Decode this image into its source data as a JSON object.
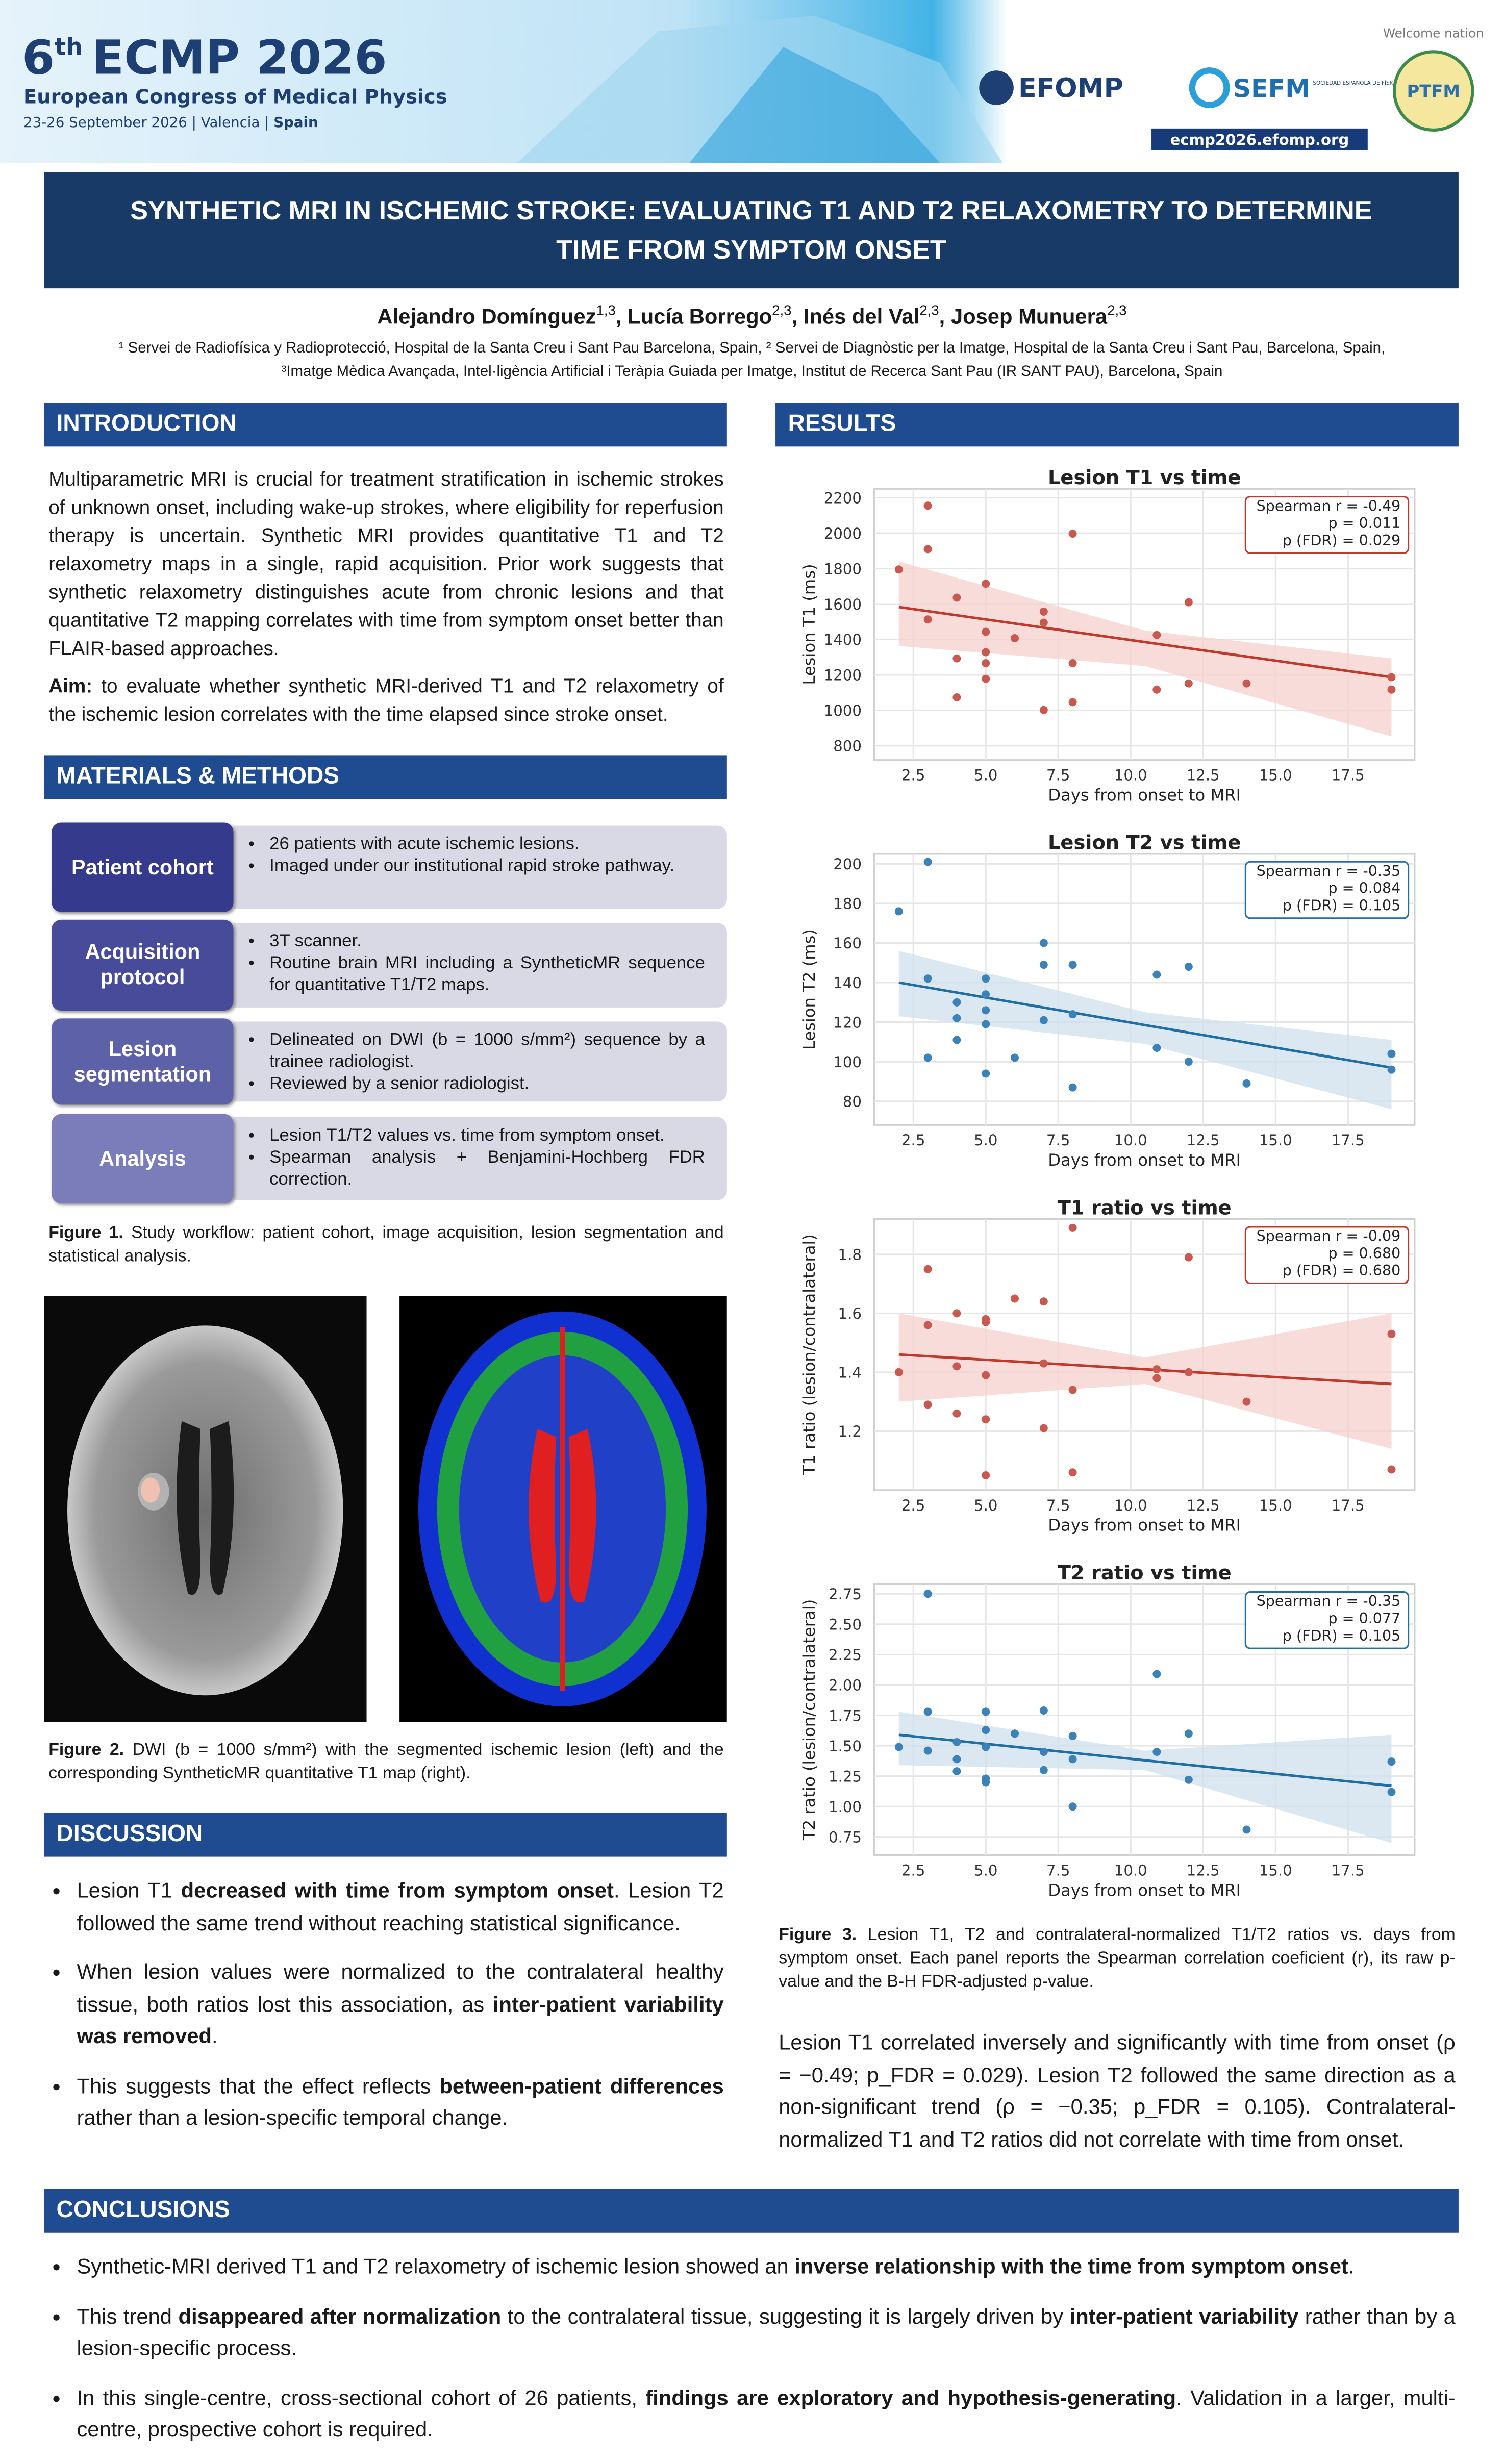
{
  "banner": {
    "edition_number": "6",
    "edition_suffix": "th",
    "name": "ECMP 2026",
    "subtitle": "European Congress of Medical Physics",
    "dates": "23-26 September 2026 | Valencia | ",
    "country": "Spain",
    "logo_efomp": "EFOMP",
    "logo_sefm": "SEFM",
    "sefm_full": "SOCIEDAD ESPAÑOLA DE FÍSICA MÉDICA",
    "welcome": "Welcome nation",
    "logo_ptfm": "PTFM",
    "url": "ecmp2026.efomp.org"
  },
  "header": {
    "title": "SYNTHETIC MRI IN ISCHEMIC STROKE: EVALUATING T1 AND T2 RELAXOMETRY TO DETERMINE TIME FROM SYMPTOM ONSET",
    "separator": ",",
    "authors": [
      {
        "name": "Alejandro Domínguez",
        "aff": "1,3"
      },
      {
        "name": "Lucía Borrego",
        "aff": "2,3"
      },
      {
        "name": "Inés del Val",
        "aff": "2,3"
      },
      {
        "name": "Josep Munuera",
        "aff": "2,3"
      }
    ],
    "affiliations": [
      "¹ Servei de Radiofísica y Radioprotecció, Hospital de la Santa Creu i Sant Pau Barcelona, Spain,  ² Servei de Diagnòstic per la Imatge, Hospital de la Santa Creu i Sant Pau, Barcelona, Spain,",
      "³Imatge Mèdica Avançada, Intel·ligència Artificial i Teràpia Guiada per Imatge, Institut de Recerca Sant Pau (IR SANT PAU), Barcelona, Spain"
    ]
  },
  "introduction": {
    "heading": "INTRODUCTION",
    "text": "Multiparametric MRI is crucial for treatment stratification in ischemic strokes of unknown onset, including wake-up strokes, where eligibility for reperfusion therapy is uncertain. Synthetic MRI provides quantitative T1 and T2 relaxometry maps in a single, rapid acquisition. Prior work suggests that synthetic relaxometry distinguishes acute from chronic lesions and that quantitative T2 mapping correlates with time from symptom onset better than FLAIR-based approaches.",
    "aim": [
      {
        "b": "Aim:"
      },
      " to evaluate whether synthetic MRI-derived T1 and T2 relaxometry of the ischemic lesion correlates with the time elapsed since stroke onset."
    ]
  },
  "methods": {
    "heading": "MATERIALS & METHODS",
    "rows": [
      {
        "label": "Patient cohort",
        "bullets": [
          "26 patients with acute ischemic lesions.",
          "Imaged under our institutional rapid stroke pathway."
        ]
      },
      {
        "label": "Acquisition protocol",
        "bullets": [
          "3T scanner.",
          "Routine brain MRI including a SyntheticMR sequence for quantitative T1/T2 maps."
        ]
      },
      {
        "label": "Lesion segmentation",
        "bullets": [
          "Delineated on DWI (b = 1000 s/mm²) sequence by a trainee radiologist.",
          "Reviewed by a senior radiologist."
        ]
      },
      {
        "label": "Analysis",
        "bullets": [
          "Lesion T1/T2  values vs. time from symptom onset.",
          "Spearman analysis + Benjamini-Hochberg FDR correction."
        ]
      }
    ],
    "figure1": [
      {
        "b": "Figure 1."
      },
      " Study workflow: patient cohort, image acquisition, lesion segmentation and statistical analysis."
    ],
    "figure2": [
      {
        "b": "Figure 2."
      },
      " DWI (b = 1000 s/mm²) with the segmented ischemic lesion (left) and the corresponding SyntheticMR quantitative T1 map (right)."
    ]
  },
  "discussion": {
    "heading": "DISCUSSION",
    "bullets": [
      [
        "Lesion T1 ",
        {
          "b": "decreased with time from symptom onset"
        },
        ". Lesion T2 followed the same trend without reaching statistical significance."
      ],
      [
        "When lesion values were normalized to the contralateral healthy tissue, both ratios lost this association, as ",
        {
          "b": "inter-patient variability was removed"
        },
        "."
      ],
      [
        "This suggests that the effect reflects ",
        {
          "b": "between-patient differences"
        },
        " rather than a lesion-specific temporal change."
      ]
    ]
  },
  "results": {
    "heading": "RESULTS",
    "figure3": [
      {
        "b": "Figure 3."
      },
      " Lesion T1, T2 and contralateral-normalized T1/T2 ratios vs. days from symptom onset. Each panel reports the Spearman correlation coeficient (r), its raw p-value and the B-H FDR-adjusted p-value."
    ],
    "text": "Lesion T1 correlated inversely and significantly with time from onset (ρ = −0.49; p_FDR = 0.029). Lesion T2 followed the same direction as a non-significant trend (ρ = −0.35; p_FDR = 0.105). Contralateral-normalized T1 and T2 ratios did not correlate with time from onset."
  },
  "conclusions": {
    "heading": "CONCLUSIONS",
    "bullets": [
      [
        "Synthetic-MRI derived T1 and T2 relaxometry of ischemic lesion showed an ",
        {
          "b": "inverse relationship with the time from symptom onset"
        },
        "."
      ],
      [
        "This trend ",
        {
          "b": "disappeared after normalization"
        },
        " to the contralateral tissue, suggesting it is largely driven by ",
        {
          "b": "inter-patient variability"
        },
        " rather than by a lesion-specific process."
      ],
      [
        "In this single-centre, cross-sectional cohort of 26 patients, ",
        {
          "b": "findings are exploratory and hypothesis-generating"
        },
        ". Validation in a larger, multi-centre, prospective cohort is required."
      ]
    ]
  },
  "chart_data": [
    {
      "type": "scatter",
      "title": "Lesion T1 vs time",
      "xlabel": "Days from onset to MRI",
      "ylabel": "Lesion T1 (ms)",
      "grid": true,
      "color": "#c9594e",
      "x": [
        2,
        3,
        3,
        3,
        4,
        4,
        4,
        5,
        5,
        5,
        5,
        5,
        6,
        7,
        7,
        7,
        8,
        8,
        8,
        10.9,
        10.9,
        12,
        12,
        14,
        19,
        19
      ],
      "values": [
        1795,
        2155,
        1910,
        1513,
        1636,
        1293,
        1073,
        1715,
        1443,
        1328,
        1266,
        1178,
        1407,
        1557,
        1495,
        1002,
        1997,
        1266,
        1046,
        1425,
        1117,
        1610,
        1152,
        1152,
        1187,
        1117
      ],
      "xlim": [
        1.15,
        19.8
      ],
      "ylim": [
        720,
        2250
      ],
      "xticks": [
        2.5,
        {
          "value": 5,
          "label": "5.0"
        },
        7.5,
        {
          "value": 10,
          "label": "10.0"
        },
        12.5,
        {
          "value": 15,
          "label": "15.0"
        },
        17.5
      ],
      "yticks": [
        800,
        1000,
        1200,
        1400,
        1600,
        1800,
        2000,
        2200
      ],
      "trend": {
        "x": [
          2,
          19
        ],
        "values": [
          1583,
          1187
        ],
        "color": "#c0392b"
      },
      "band": {
        "x": [
          2,
          10.5,
          19
        ],
        "lower": [
          1363,
          1250,
          853
        ],
        "upper": [
          1840,
          1450,
          1293
        ],
        "color": "#f5d0cd"
      },
      "annotation": [
        "Spearman r = -0.49",
        "p = 0.011",
        "p (FDR) = 0.029"
      ]
    },
    {
      "type": "scatter",
      "title": "Lesion T2 vs time",
      "xlabel": "Days from onset to MRI",
      "ylabel": "Lesion T2 (ms)",
      "grid": true,
      "color": "#3b82b8",
      "x": [
        2,
        3,
        3,
        3,
        4,
        4,
        4,
        5,
        5,
        5,
        5,
        5,
        6,
        7,
        7,
        7,
        8,
        8,
        8,
        10.9,
        10.9,
        12,
        12,
        14,
        19,
        19
      ],
      "values": [
        176,
        201,
        142,
        102,
        130,
        122,
        111,
        142,
        134,
        126,
        119,
        94,
        102,
        160,
        149,
        121,
        149,
        124,
        87,
        144,
        107,
        148,
        100,
        89,
        104,
        96
      ],
      "xlim": [
        1.15,
        19.8
      ],
      "ylim": [
        68,
        205
      ],
      "xticks": [
        2.5,
        {
          "value": 5,
          "label": "5.0"
        },
        7.5,
        {
          "value": 10,
          "label": "10.0"
        },
        12.5,
        {
          "value": 15,
          "label": "15.0"
        },
        17.5
      ],
      "yticks": [
        80,
        100,
        120,
        140,
        160,
        180,
        200
      ],
      "trend": {
        "x": [
          2,
          19
        ],
        "values": [
          140,
          97
        ],
        "color": "#1f6fa5"
      },
      "band": {
        "x": [
          2,
          10.5,
          19
        ],
        "lower": [
          123,
          109,
          76
        ],
        "upper": [
          156,
          125,
          111
        ],
        "color": "#cfe0ee"
      },
      "annotation": [
        "Spearman r = -0.35",
        "p = 0.084",
        "p (FDR) = 0.105"
      ]
    },
    {
      "type": "scatter",
      "title": "T1 ratio vs time",
      "xlabel": "Days from onset to MRI",
      "ylabel": "T1 ratio (lesion/contralateral)",
      "grid": true,
      "color": "#c9594e",
      "x": [
        2,
        3,
        3,
        3,
        4,
        4,
        4,
        5,
        5,
        5,
        5,
        5,
        6,
        7,
        7,
        7,
        8,
        8,
        8,
        10.9,
        10.9,
        12,
        12,
        14,
        19,
        19
      ],
      "values": [
        1.4,
        1.75,
        1.56,
        1.29,
        1.6,
        1.42,
        1.26,
        1.58,
        1.57,
        1.39,
        1.24,
        1.05,
        1.65,
        1.64,
        1.43,
        1.21,
        1.89,
        1.34,
        1.06,
        1.41,
        1.38,
        1.79,
        1.4,
        1.3,
        1.53,
        1.07
      ],
      "xlim": [
        1.15,
        19.8
      ],
      "ylim": [
        1.0,
        1.92
      ],
      "xticks": [
        2.5,
        {
          "value": 5,
          "label": "5.0"
        },
        7.5,
        {
          "value": 10,
          "label": "10.0"
        },
        12.5,
        {
          "value": 15,
          "label": "15.0"
        },
        17.5
      ],
      "yticks": [
        1.2,
        1.4,
        1.6,
        1.8
      ],
      "trend": {
        "x": [
          2,
          19
        ],
        "values": [
          1.46,
          1.36
        ],
        "color": "#c0392b"
      },
      "band": {
        "x": [
          2,
          10.5,
          19
        ],
        "lower": [
          1.3,
          1.36,
          1.14
        ],
        "upper": [
          1.6,
          1.45,
          1.6
        ],
        "color": "#f5d0cd"
      },
      "annotation": [
        "Spearman r = -0.09",
        "p = 0.680",
        "p (FDR) = 0.680"
      ]
    },
    {
      "type": "scatter",
      "title": "T2 ratio vs time",
      "xlabel": "Days from onset to MRI",
      "ylabel": "T2 ratio (lesion/contralateral)",
      "grid": true,
      "color": "#3b82b8",
      "x": [
        2,
        3,
        3,
        3,
        4,
        4,
        4,
        5,
        5,
        5,
        5,
        5,
        6,
        7,
        7,
        7,
        8,
        8,
        8,
        10.9,
        10.9,
        12,
        12,
        14,
        19,
        19
      ],
      "values": [
        1.49,
        2.75,
        1.78,
        1.46,
        1.53,
        1.39,
        1.29,
        1.78,
        1.63,
        1.49,
        1.23,
        1.2,
        1.6,
        1.79,
        1.45,
        1.3,
        1.58,
        1.39,
        1.0,
        2.09,
        1.45,
        1.6,
        1.22,
        0.81,
        1.37,
        1.12
      ],
      "xlim": [
        1.15,
        19.8
      ],
      "ylim": [
        0.6,
        2.83
      ],
      "xticks": [
        2.5,
        {
          "value": 5,
          "label": "5.0"
        },
        7.5,
        {
          "value": 10,
          "label": "10.0"
        },
        12.5,
        {
          "value": 15,
          "label": "15.0"
        },
        17.5
      ],
      "yticks": [
        0.75,
        {
          "value": 1,
          "label": "1.00"
        },
        1.25,
        {
          "value": 1.5,
          "label": "1.50"
        },
        1.75,
        {
          "value": 2,
          "label": "2.00"
        },
        2.25,
        {
          "value": 2.5,
          "label": "2.50"
        },
        2.75
      ],
      "trend": {
        "x": [
          2,
          19
        ],
        "values": [
          1.59,
          1.17
        ],
        "color": "#1f6fa5"
      },
      "band": {
        "x": [
          2,
          10.5,
          19
        ],
        "lower": [
          1.34,
          1.3,
          0.7
        ],
        "upper": [
          1.78,
          1.46,
          1.59
        ],
        "color": "#cfe0ee"
      },
      "annotation": [
        "Spearman r = -0.35",
        "p = 0.077",
        "p (FDR) = 0.105"
      ]
    }
  ]
}
